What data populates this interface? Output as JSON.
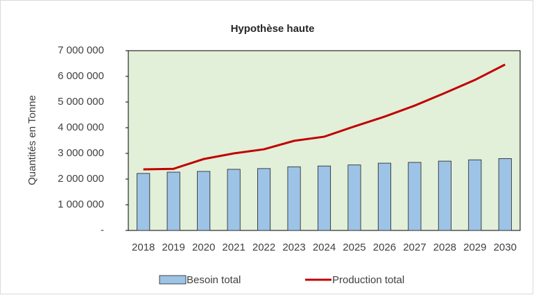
{
  "chart_data": {
    "type": "combo",
    "title": "Hypothèse haute",
    "y_label": "Quantités  en Tonne",
    "categories": [
      "2018",
      "2019",
      "2020",
      "2021",
      "2022",
      "2023",
      "2024",
      "2025",
      "2026",
      "2027",
      "2028",
      "2029",
      "2030"
    ],
    "series": [
      {
        "name": "Besoin total",
        "type": "bar",
        "color": "#9dc3e6",
        "values": [
          2220000,
          2270000,
          2300000,
          2380000,
          2410000,
          2480000,
          2510000,
          2550000,
          2620000,
          2650000,
          2700000,
          2750000,
          2800000
        ]
      },
      {
        "name": "Production total",
        "type": "line",
        "color": "#c00000",
        "values": [
          2380000,
          2400000,
          2780000,
          3000000,
          3160000,
          3490000,
          3650000,
          4050000,
          4430000,
          4860000,
          5350000,
          5860000,
          6460000
        ]
      }
    ],
    "ylim": [
      0,
      7000000
    ],
    "yticks": [
      {
        "value": 0,
        "label": "-"
      },
      {
        "value": 1000000,
        "label": "1 000 000"
      },
      {
        "value": 2000000,
        "label": "2 000 000"
      },
      {
        "value": 3000000,
        "label": "3 000 000"
      },
      {
        "value": 4000000,
        "label": "4 000 000"
      },
      {
        "value": 5000000,
        "label": "5 000 000"
      },
      {
        "value": 6000000,
        "label": "6 000 000"
      },
      {
        "value": 7000000,
        "label": "7 000 000"
      }
    ],
    "plot_background": "#e2efd9",
    "legend": "bottom"
  }
}
